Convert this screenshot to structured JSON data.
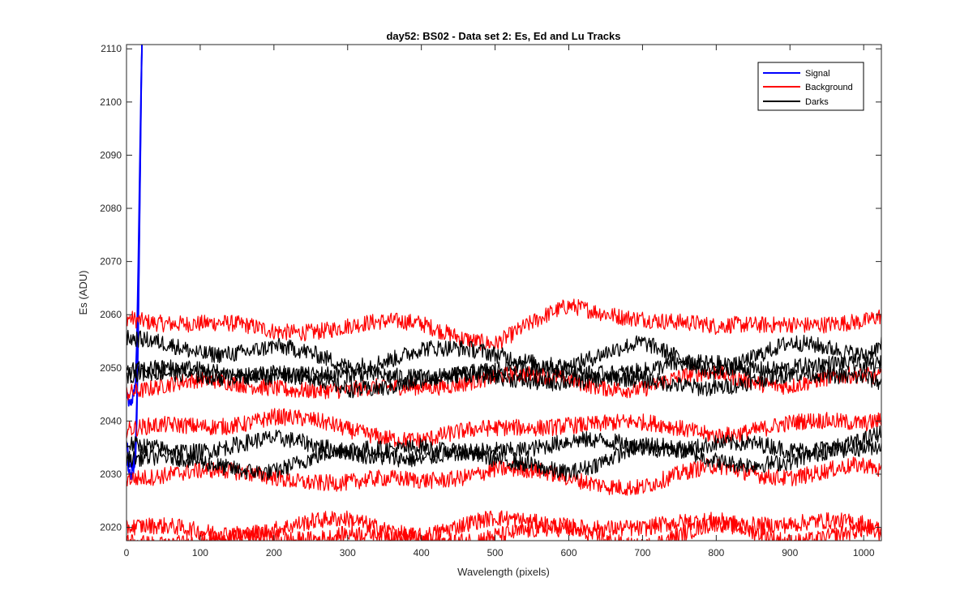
{
  "chart_data": {
    "type": "line",
    "title": "day52: BS02 - Data set 2: Es, Ed and Lu Tracks",
    "xlabel": "Wavelength (pixels)",
    "ylabel": "Es (ADU)",
    "xlim": [
      0,
      1024
    ],
    "ylim": [
      2017.5,
      2110.8
    ],
    "x_ticks": [
      0,
      100,
      200,
      300,
      400,
      500,
      600,
      700,
      800,
      900,
      1000
    ],
    "y_ticks": [
      2020,
      2030,
      2040,
      2050,
      2060,
      2070,
      2080,
      2090,
      2100,
      2110
    ],
    "grid": false,
    "legend_position": "top-right",
    "legend": [
      {
        "label": "Signal",
        "color": "#0000ff"
      },
      {
        "label": "Background",
        "color": "#ff0000"
      },
      {
        "label": "Darks",
        "color": "#000000"
      }
    ],
    "series": [
      {
        "group": "Signal",
        "color": "#0000ff",
        "x": [
          0,
          4,
          8,
          12,
          14,
          16,
          18,
          20,
          21
        ],
        "y": [
          2045,
          2043,
          2044,
          2047,
          2055,
          2070,
          2088,
          2105,
          2111
        ]
      },
      {
        "group": "Signal",
        "color": "#0000ff",
        "x": [
          0,
          4,
          8,
          12,
          14,
          16,
          18,
          20,
          21
        ],
        "y": [
          2036,
          2032,
          2031,
          2034,
          2044,
          2060,
          2082,
          2103,
          2111
        ]
      },
      {
        "group": "Signal",
        "color": "#0000ff",
        "x": [
          0,
          4,
          8,
          12,
          14,
          16,
          18,
          20,
          21
        ],
        "y": [
          2033,
          2030,
          2030,
          2032,
          2040,
          2057,
          2080,
          2102,
          2111
        ]
      },
      {
        "group": "Background",
        "color": "#ff0000",
        "x": [
          0,
          100,
          200,
          300,
          400,
          500,
          600,
          700,
          800,
          900,
          1000,
          1024
        ],
        "y": [
          2060,
          2058,
          2057,
          2058,
          2058,
          2055,
          2061,
          2060,
          2057,
          2059,
          2058,
          2059
        ]
      },
      {
        "group": "Background",
        "color": "#ff0000",
        "x": [
          0,
          100,
          200,
          300,
          400,
          500,
          600,
          700,
          800,
          900,
          1000,
          1024
        ],
        "y": [
          2046,
          2047,
          2047,
          2045,
          2047,
          2048,
          2048,
          2046,
          2049,
          2047,
          2048,
          2048
        ]
      },
      {
        "group": "Background",
        "color": "#ff0000",
        "x": [
          0,
          100,
          200,
          300,
          400,
          500,
          600,
          700,
          800,
          900,
          1000,
          1024
        ],
        "y": [
          2038,
          2039,
          2041,
          2038,
          2037,
          2038,
          2040,
          2039,
          2038,
          2039,
          2040,
          2041
        ]
      },
      {
        "group": "Background",
        "color": "#ff0000",
        "x": [
          0,
          100,
          200,
          300,
          400,
          500,
          600,
          700,
          800,
          900,
          1000,
          1024
        ],
        "y": [
          2030,
          2030,
          2030,
          2028,
          2029,
          2031,
          2029,
          2028,
          2031,
          2030,
          2031,
          2030
        ]
      },
      {
        "group": "Background",
        "color": "#ff0000",
        "x": [
          0,
          100,
          200,
          300,
          400,
          500,
          600,
          700,
          800,
          900,
          1000,
          1024
        ],
        "y": [
          2020,
          2019,
          2020,
          2021,
          2019,
          2021,
          2021,
          2019,
          2022,
          2020,
          2021,
          2020
        ]
      },
      {
        "group": "Background",
        "color": "#ff0000",
        "x": [
          0,
          100,
          200,
          300,
          400,
          500,
          600,
          700,
          800,
          900,
          1000,
          1024
        ],
        "y": [
          2018,
          2017,
          2018,
          2019,
          2017,
          2019,
          2019,
          2017,
          2020,
          2018,
          2019,
          2018
        ]
      },
      {
        "group": "Darks",
        "color": "#000000",
        "x": [
          0,
          100,
          200,
          300,
          400,
          500,
          600,
          700,
          800,
          900,
          1000,
          1024
        ],
        "y": [
          2055,
          2053,
          2054,
          2050,
          2054,
          2052,
          2051,
          2054,
          2050,
          2054,
          2053,
          2055
        ]
      },
      {
        "group": "Darks",
        "color": "#000000",
        "x": [
          0,
          100,
          200,
          300,
          400,
          500,
          600,
          700,
          800,
          900,
          1000,
          1024
        ],
        "y": [
          2050,
          2049,
          2049,
          2048,
          2049,
          2049,
          2050,
          2049,
          2051,
          2050,
          2050,
          2051
        ]
      },
      {
        "group": "Darks",
        "color": "#000000",
        "x": [
          0,
          100,
          200,
          300,
          400,
          500,
          600,
          700,
          800,
          900,
          1000,
          1024
        ],
        "y": [
          2048,
          2049,
          2049,
          2046,
          2048,
          2048,
          2048,
          2047,
          2047,
          2048,
          2049,
          2048
        ]
      },
      {
        "group": "Darks",
        "color": "#000000",
        "x": [
          0,
          100,
          200,
          300,
          400,
          500,
          600,
          700,
          800,
          900,
          1000,
          1024
        ],
        "y": [
          2035,
          2035,
          2036,
          2035,
          2032,
          2035,
          2036,
          2035,
          2036,
          2034,
          2037,
          2038
        ]
      },
      {
        "group": "Darks",
        "color": "#000000",
        "x": [
          0,
          100,
          200,
          300,
          400,
          500,
          600,
          700,
          800,
          900,
          1000,
          1024
        ],
        "y": [
          2033,
          2032,
          2031,
          2034,
          2036,
          2032,
          2031,
          2035,
          2033,
          2032,
          2035,
          2036
        ]
      }
    ]
  }
}
